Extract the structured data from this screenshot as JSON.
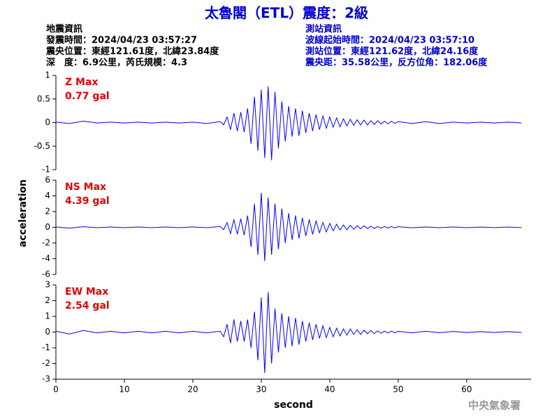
{
  "header": {
    "title": "太魯閣（ETL）震度：2級",
    "left": [
      "地震資訊",
      "發震時間：2024/04/23 03:57:27",
      "震央位置：東經121.61度，北緯23.84度",
      "深　度：6.9公里，芮氏規模：4.3"
    ],
    "right": [
      "測站資訊",
      "波線起始時間：2024/04/23 03:57:10",
      "測站位置：東經121.62度，北緯24.16度",
      "震央距：35.58公里，反方位角：182.06度"
    ]
  },
  "watermark": "中央氣象署",
  "chart_data": [
    {
      "type": "line",
      "annotation": [
        "Z Max",
        "0.77 gal"
      ],
      "color": "#0000ff",
      "xlim": [
        0,
        69.4
      ],
      "ylim": [
        -1,
        1
      ],
      "yticks": [
        -1,
        -0.5,
        0,
        0.5,
        1
      ],
      "x": [
        0,
        2,
        4,
        6,
        8,
        10,
        12,
        14,
        16,
        18,
        20,
        22,
        24,
        24.5,
        25,
        25.5,
        26,
        26.5,
        27,
        27.5,
        28,
        28.5,
        29,
        29.5,
        30,
        30.5,
        31,
        31.5,
        32,
        32.5,
        33,
        33.5,
        34,
        34.5,
        35,
        35.5,
        36,
        36.5,
        37,
        37.5,
        38,
        38.5,
        39,
        39.5,
        40,
        40.5,
        41,
        41.5,
        42,
        42.5,
        43,
        43.5,
        44,
        44.5,
        45,
        45.5,
        46,
        46.5,
        47,
        47.5,
        48,
        48.5,
        49,
        49.5,
        50,
        52,
        54,
        56,
        58,
        60,
        62,
        64,
        66,
        68
      ],
      "values": [
        0.01,
        -0.02,
        0.03,
        -0.01,
        0.01,
        -0.01,
        0.01,
        -0.01,
        0.01,
        -0.01,
        0.01,
        -0.02,
        0.02,
        -0.05,
        0.12,
        -0.15,
        0.2,
        -0.18,
        0.22,
        -0.2,
        0.3,
        -0.45,
        0.55,
        -0.6,
        0.7,
        -0.75,
        0.77,
        -0.8,
        0.65,
        -0.55,
        0.45,
        -0.4,
        0.35,
        -0.3,
        0.3,
        -0.28,
        0.25,
        -0.22,
        0.2,
        -0.18,
        0.17,
        -0.15,
        0.14,
        -0.12,
        0.12,
        -0.1,
        0.1,
        -0.09,
        0.08,
        -0.07,
        0.07,
        -0.06,
        0.06,
        -0.05,
        0.05,
        -0.05,
        0.04,
        -0.04,
        0.04,
        -0.03,
        0.03,
        -0.03,
        0.03,
        -0.02,
        0.02,
        -0.02,
        0.02,
        -0.02,
        0.01,
        -0.01,
        0.01,
        -0.01,
        0.01,
        -0.01
      ]
    },
    {
      "type": "line",
      "annotation": [
        "NS Max",
        "4.39 gal"
      ],
      "ylabel": "acceleration",
      "color": "#0000ff",
      "xlim": [
        0,
        69.4
      ],
      "ylim": [
        -6,
        6
      ],
      "yticks": [
        -6,
        -4,
        -2,
        0,
        2,
        4,
        6
      ],
      "x": [
        0,
        2,
        4,
        6,
        8,
        10,
        12,
        14,
        16,
        18,
        20,
        22,
        24,
        24.5,
        25,
        25.5,
        26,
        26.5,
        27,
        27.5,
        28,
        28.5,
        29,
        29.5,
        30,
        30.5,
        31,
        31.5,
        32,
        32.5,
        33,
        33.5,
        34,
        34.5,
        35,
        35.5,
        36,
        36.5,
        37,
        37.5,
        38,
        38.5,
        39,
        39.5,
        40,
        40.5,
        41,
        41.5,
        42,
        42.5,
        43,
        43.5,
        44,
        44.5,
        45,
        45.5,
        46,
        46.5,
        47,
        47.5,
        48,
        48.5,
        49,
        49.5,
        50,
        52,
        54,
        56,
        58,
        60,
        62,
        64,
        66,
        68
      ],
      "values": [
        0.05,
        -0.1,
        0.08,
        -0.05,
        0.05,
        -0.05,
        0.05,
        -0.05,
        0.05,
        -0.05,
        0.05,
        -0.05,
        0.1,
        -0.3,
        0.6,
        -0.8,
        1.0,
        -0.9,
        1.1,
        -1.0,
        1.5,
        -2.5,
        3.0,
        -3.5,
        4.39,
        -4.3,
        3.8,
        -3.5,
        3.0,
        -2.8,
        2.4,
        -2.0,
        1.8,
        -1.6,
        1.5,
        -1.4,
        1.2,
        -1.1,
        1.0,
        -0.9,
        0.8,
        -0.7,
        0.6,
        -0.6,
        0.5,
        -0.45,
        0.4,
        -0.35,
        0.3,
        -0.3,
        0.25,
        -0.25,
        0.2,
        -0.2,
        0.2,
        -0.15,
        0.15,
        -0.15,
        0.1,
        -0.1,
        0.1,
        -0.1,
        0.1,
        -0.08,
        0.08,
        -0.06,
        0.05,
        -0.05,
        0.04,
        -0.04,
        0.03,
        -0.03,
        0.03,
        -0.03
      ]
    },
    {
      "type": "line",
      "annotation": [
        "EW Max",
        "2.54 gal"
      ],
      "xlabel": "second",
      "color": "#0000ff",
      "xlim": [
        0,
        69.4
      ],
      "ylim": [
        -3,
        3
      ],
      "yticks": [
        -3,
        -2,
        -1,
        0,
        1,
        2,
        3
      ],
      "xticks": [
        0,
        10,
        20,
        30,
        40,
        50,
        60
      ],
      "x": [
        0,
        2,
        4,
        6,
        8,
        10,
        12,
        14,
        16,
        18,
        20,
        22,
        24,
        24.5,
        25,
        25.5,
        26,
        26.5,
        27,
        27.5,
        28,
        28.5,
        29,
        29.5,
        30,
        30.5,
        31,
        31.5,
        32,
        32.5,
        33,
        33.5,
        34,
        34.5,
        35,
        35.5,
        36,
        36.5,
        37,
        37.5,
        38,
        38.5,
        39,
        39.5,
        40,
        40.5,
        41,
        41.5,
        42,
        42.5,
        43,
        43.5,
        44,
        44.5,
        45,
        45.5,
        46,
        46.5,
        47,
        47.5,
        48,
        48.5,
        49,
        49.5,
        50,
        52,
        54,
        56,
        58,
        60,
        62,
        64,
        66,
        68
      ],
      "values": [
        0.05,
        -0.12,
        0.1,
        -0.05,
        0.05,
        -0.05,
        0.05,
        -0.05,
        0.05,
        -0.05,
        0.05,
        -0.05,
        0.05,
        -0.3,
        0.5,
        -0.7,
        0.8,
        -0.6,
        0.7,
        -0.6,
        0.8,
        -1.0,
        1.3,
        -1.8,
        2.2,
        -2.6,
        2.54,
        -2.0,
        1.5,
        -1.3,
        1.2,
        -1.0,
        1.0,
        -0.9,
        0.9,
        -0.8,
        0.7,
        -0.6,
        0.6,
        -0.5,
        0.5,
        -0.4,
        0.4,
        -0.35,
        0.3,
        -0.3,
        0.25,
        -0.25,
        0.2,
        -0.2,
        0.2,
        -0.15,
        0.15,
        -0.15,
        0.12,
        -0.1,
        0.1,
        -0.1,
        0.08,
        -0.08,
        0.07,
        -0.06,
        0.06,
        -0.05,
        0.05,
        -0.05,
        0.05,
        -0.04,
        0.04,
        -0.03,
        0.03,
        -0.03,
        0.03,
        -0.03
      ]
    }
  ]
}
